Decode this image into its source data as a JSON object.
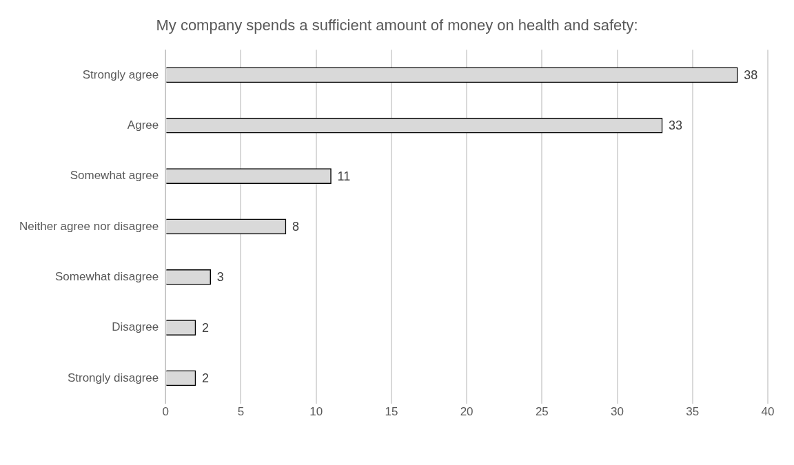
{
  "chart_data": {
    "type": "bar",
    "orientation": "horizontal",
    "title": "My company spends a sufficient amount of money on health and safety:",
    "categories": [
      "Strongly agree",
      "Agree",
      "Somewhat agree",
      "Neither agree nor disagree",
      "Somewhat disagree",
      "Disagree",
      "Strongly disagree"
    ],
    "values": [
      38,
      33,
      11,
      8,
      3,
      2,
      2
    ],
    "color": "#d9d9d9",
    "xlim": [
      0,
      40
    ],
    "xticks": [
      0,
      5,
      10,
      15,
      20,
      25,
      30,
      35,
      40
    ],
    "grid": "x",
    "data_labels": true
  }
}
